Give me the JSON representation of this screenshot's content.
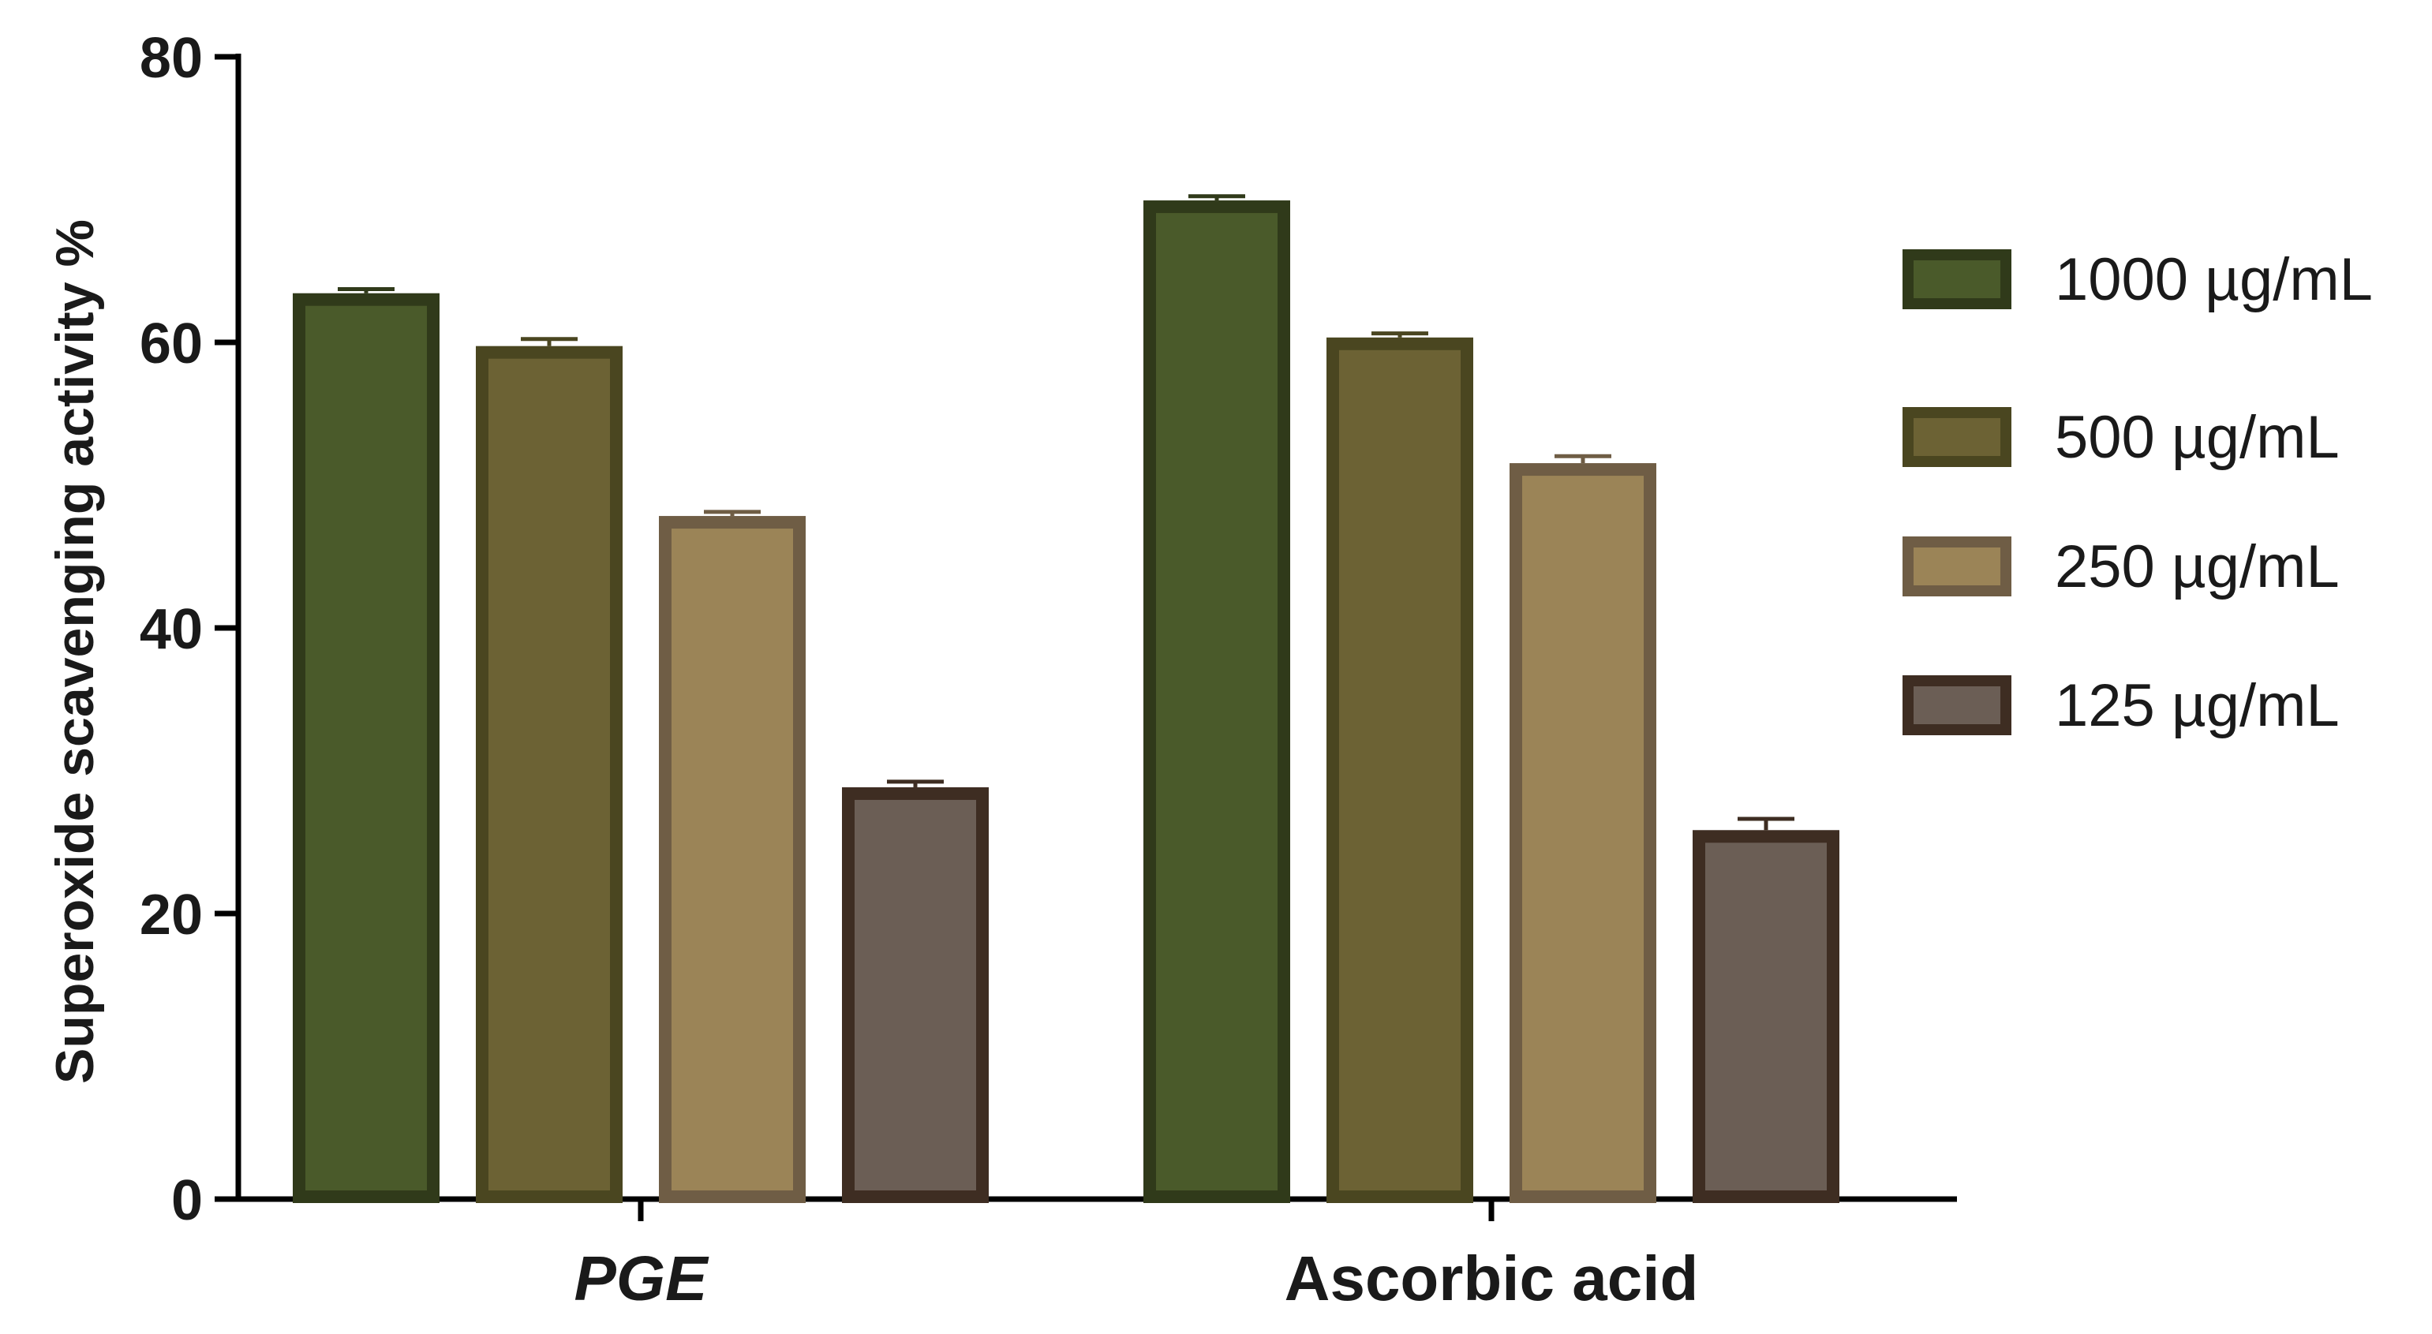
{
  "chart_data": {
    "type": "bar",
    "title": "",
    "xlabel": "",
    "ylabel": "Superoxide scavenging activity %",
    "ylim": [
      0,
      80
    ],
    "yticks": [
      0,
      20,
      40,
      60,
      80
    ],
    "grid": false,
    "legend_position": "right",
    "categories": [
      "PGE",
      "Ascorbic acid"
    ],
    "category_styles": [
      "italic",
      "normal"
    ],
    "series": [
      {
        "name": "1000 µg/mL",
        "values": [
          63,
          69.5
        ],
        "errors": [
          0.4,
          0.4
        ],
        "fill": "#4a5a2a",
        "stroke": "#303a1a"
      },
      {
        "name": "500 µg/mL",
        "values": [
          59.3,
          59.9
        ],
        "errors": [
          0.6,
          0.4
        ],
        "fill": "#6c6234",
        "stroke": "#4a4620"
      },
      {
        "name": "250 µg/mL",
        "values": [
          47.4,
          51.1
        ],
        "errors": [
          0.4,
          0.6
        ],
        "fill": "#9b8457",
        "stroke": "#6f5d45"
      },
      {
        "name": "125 µg/mL",
        "values": [
          28.4,
          25.4
        ],
        "errors": [
          0.5,
          0.9
        ],
        "fill": "#6b5e55",
        "stroke": "#3e2d22"
      }
    ]
  }
}
